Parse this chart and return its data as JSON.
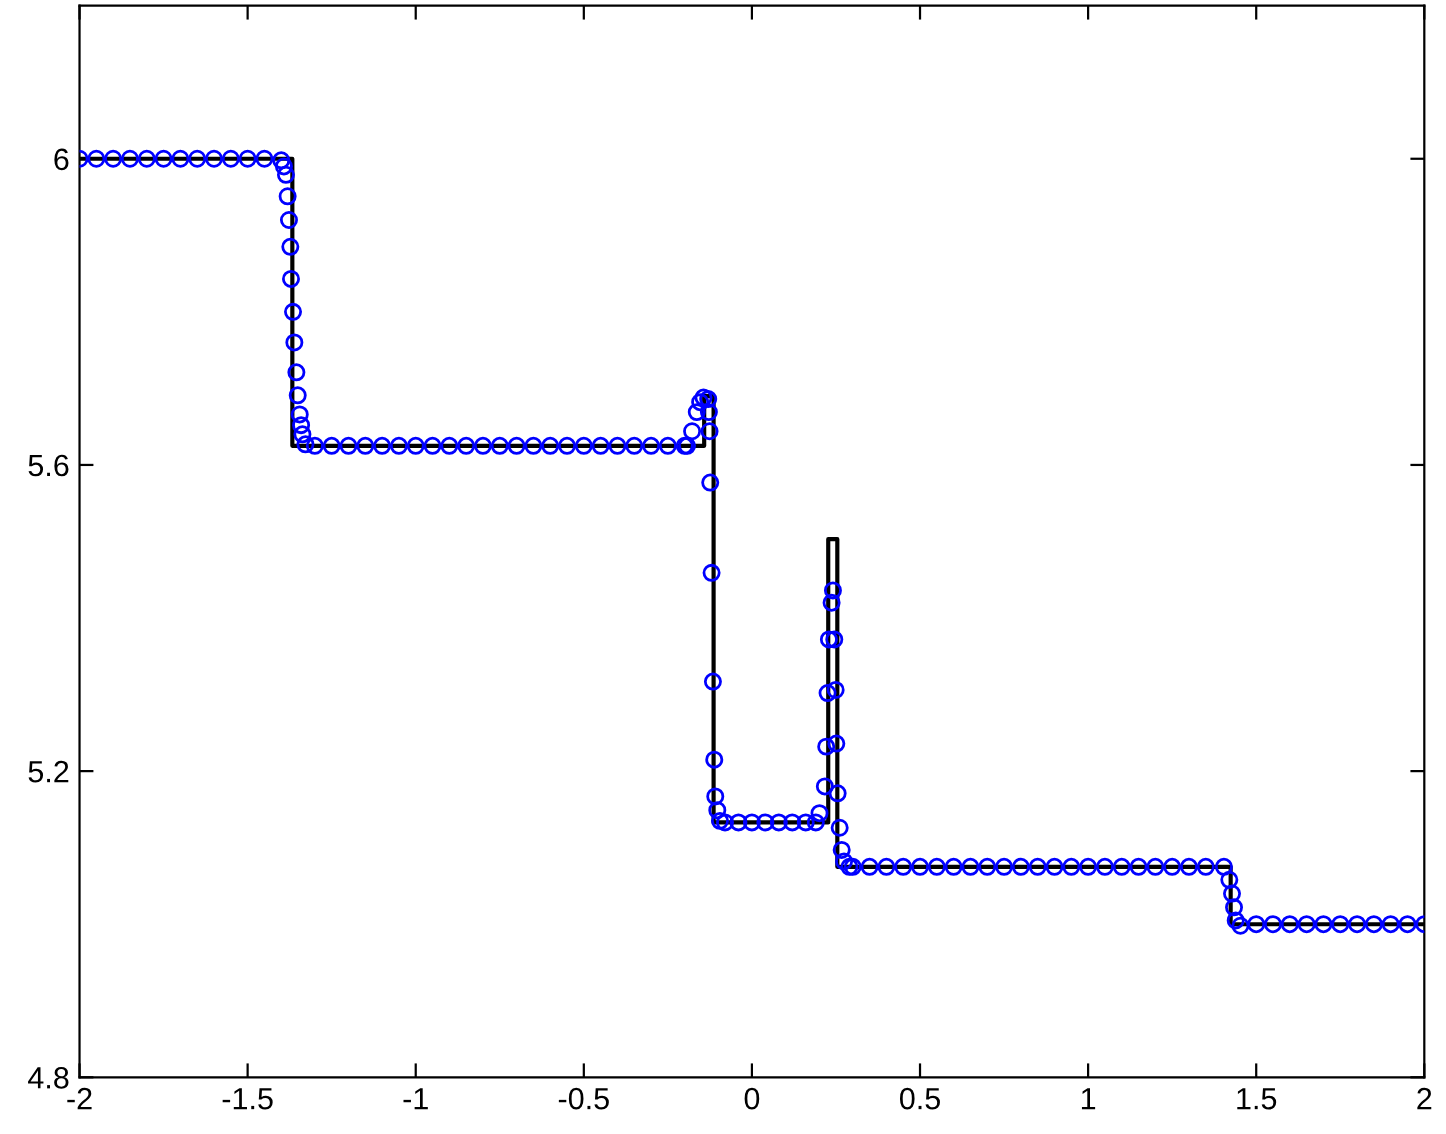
{
  "chart_data": {
    "type": "line",
    "xlim": [
      -2,
      2
    ],
    "ylim": [
      4.8,
      6.2
    ],
    "xticks": [
      -2,
      -1.5,
      -1,
      -0.5,
      0,
      0.5,
      1,
      1.5,
      2
    ],
    "yticks": [
      4.8,
      5.2,
      5.6,
      6
    ],
    "grid": false,
    "legend": false,
    "series": [
      {
        "color": "#000000",
        "marker": "none",
        "line_style": "solid",
        "x": [
          -2,
          -1.367,
          -1.367,
          -0.142,
          -0.142,
          -0.114,
          -0.114,
          0.227,
          0.227,
          0.254,
          0.254,
          1.424,
          1.424,
          2
        ],
        "values": [
          6,
          6,
          5.625,
          5.625,
          5.69,
          5.69,
          5.133,
          5.133,
          5.503,
          5.503,
          5.075,
          5.075,
          5.0,
          5.0
        ]
      },
      {
        "type": "scatter",
        "color": "#0000ff",
        "marker": "circle",
        "x": [
          -2,
          -1.95,
          -1.9,
          -1.85,
          -1.8,
          -1.75,
          -1.7,
          -1.65,
          -1.6,
          -1.55,
          -1.5,
          -1.45,
          -1.4,
          -1.392,
          -1.386,
          -1.381,
          -1.377,
          -1.373,
          -1.371,
          -1.365,
          -1.361,
          -1.355,
          -1.351,
          -1.345,
          -1.341,
          -1.337,
          -1.328,
          -1.3,
          -1.25,
          -1.2,
          -1.15,
          -1.1,
          -1.05,
          -1,
          -0.95,
          -0.9,
          -0.85,
          -0.8,
          -0.75,
          -0.7,
          -0.65,
          -0.6,
          -0.55,
          -0.5,
          -0.45,
          -0.4,
          -0.35,
          -0.3,
          -0.25,
          -0.2,
          -0.193,
          -0.178,
          -0.164,
          -0.154,
          -0.144,
          -0.13,
          -0.128,
          -0.126,
          -0.124,
          -0.12,
          -0.116,
          -0.112,
          -0.109,
          -0.103,
          -0.095,
          -0.08,
          -0.04,
          0,
          0.04,
          0.08,
          0.12,
          0.16,
          0.19,
          0.201,
          0.217,
          0.221,
          0.225,
          0.229,
          0.237,
          0.241,
          0.245,
          0.249,
          0.251,
          0.255,
          0.261,
          0.267,
          0.274,
          0.29,
          0.3,
          0.35,
          0.4,
          0.45,
          0.5,
          0.55,
          0.6,
          0.65,
          0.7,
          0.75,
          0.8,
          0.85,
          0.9,
          0.95,
          1,
          1.05,
          1.1,
          1.15,
          1.2,
          1.25,
          1.3,
          1.35,
          1.404,
          1.42,
          1.428,
          1.434,
          1.439,
          1.453,
          1.5,
          1.55,
          1.6,
          1.65,
          1.7,
          1.75,
          1.8,
          1.85,
          1.9,
          1.95,
          2
        ],
        "values": [
          6,
          6,
          6,
          6,
          6,
          6,
          6,
          6,
          6,
          6,
          6,
          6,
          5.998,
          5.99,
          5.979,
          5.951,
          5.92,
          5.885,
          5.843,
          5.8,
          5.76,
          5.721,
          5.691,
          5.666,
          5.652,
          5.64,
          5.627,
          5.625,
          5.625,
          5.625,
          5.625,
          5.625,
          5.625,
          5.625,
          5.625,
          5.625,
          5.625,
          5.625,
          5.625,
          5.625,
          5.625,
          5.625,
          5.625,
          5.625,
          5.625,
          5.625,
          5.625,
          5.625,
          5.625,
          5.625,
          5.625,
          5.644,
          5.669,
          5.682,
          5.688,
          5.686,
          5.669,
          5.644,
          5.577,
          5.459,
          5.317,
          5.215,
          5.167,
          5.149,
          5.135,
          5.133,
          5.133,
          5.133,
          5.133,
          5.133,
          5.133,
          5.133,
          5.133,
          5.145,
          5.18,
          5.232,
          5.302,
          5.372,
          5.42,
          5.436,
          5.372,
          5.306,
          5.236,
          5.171,
          5.126,
          5.097,
          5.082,
          5.075,
          5.075,
          5.075,
          5.075,
          5.075,
          5.075,
          5.075,
          5.075,
          5.075,
          5.075,
          5.075,
          5.075,
          5.075,
          5.075,
          5.075,
          5.075,
          5.075,
          5.075,
          5.075,
          5.075,
          5.075,
          5.075,
          5.075,
          5.075,
          5.058,
          5.04,
          5.022,
          5.005,
          4.998,
          5.0,
          5.0,
          5.0,
          5.0,
          5.0,
          5.0,
          5.0,
          5.0,
          5.0,
          5.0,
          5.0
        ]
      }
    ]
  }
}
